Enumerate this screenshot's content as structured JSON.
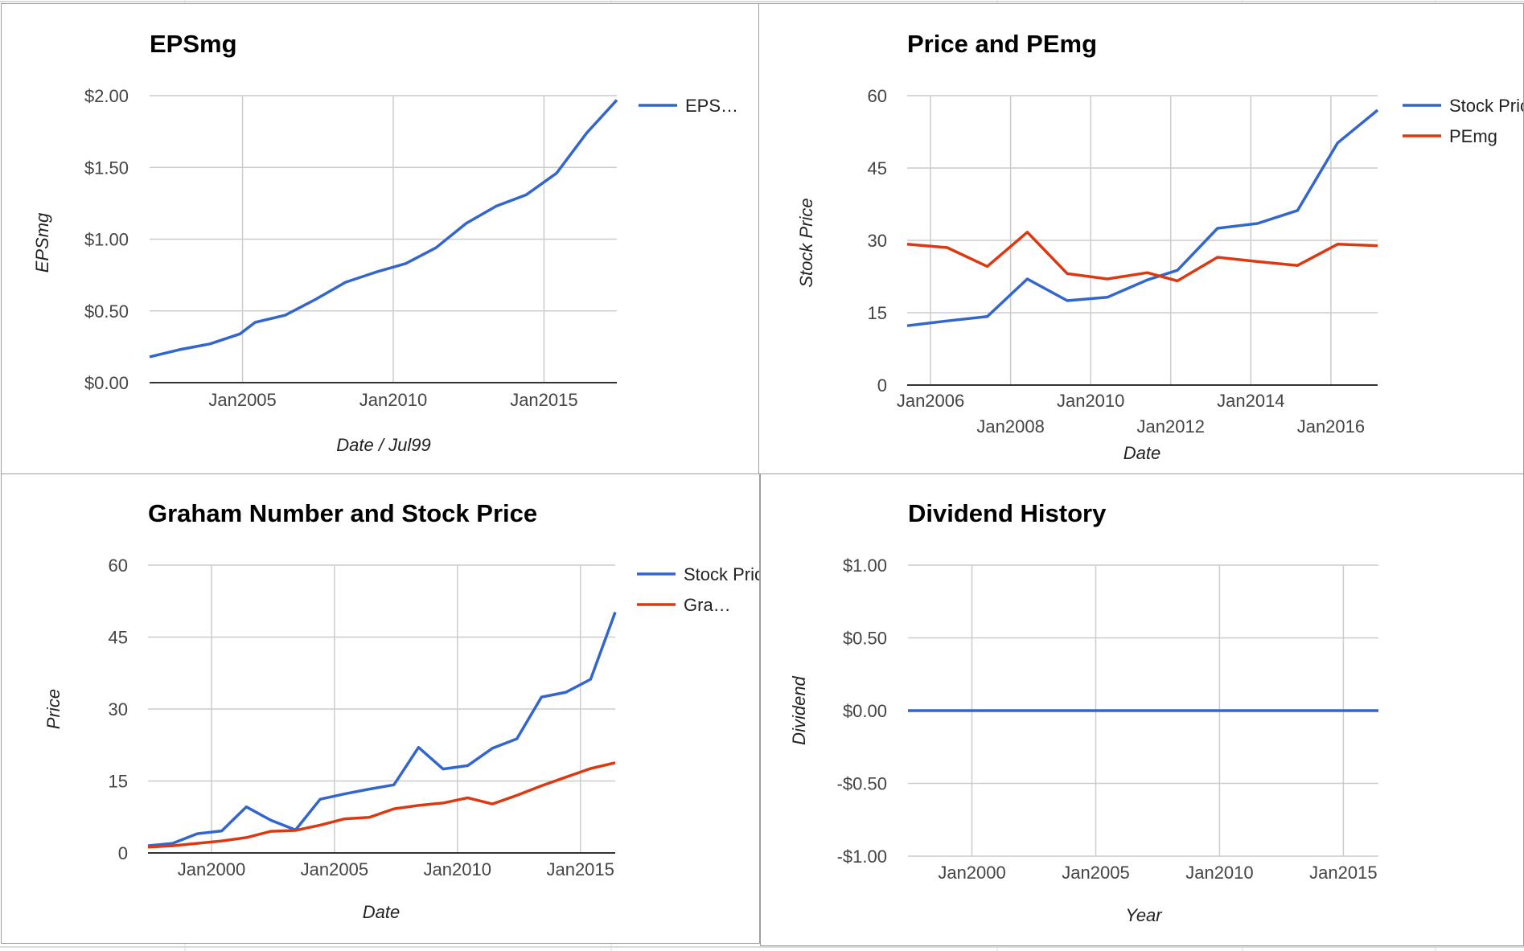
{
  "colors": {
    "blue": "#3366cc",
    "red": "#dc3912",
    "grid": "#cccccc"
  },
  "chart_data": [
    {
      "id": "eps",
      "type": "line",
      "title": "EPSmg",
      "xlabel": "Date / Jul99",
      "ylabel": "EPSmg",
      "x_range": [
        "2001-12",
        "2017-06"
      ],
      "ylim": [
        0,
        2
      ],
      "y_ticks": [
        0,
        0.5,
        1,
        1.5,
        2
      ],
      "y_tick_labels": [
        "$0.00",
        "$0.50",
        "$1.00",
        "$1.50",
        "$2.00"
      ],
      "x_ticks": [
        "2005-01",
        "2010-01",
        "2015-01"
      ],
      "x_tick_labels": [
        "Jan2005",
        "Jan2010",
        "Jan2015"
      ],
      "legend": "right",
      "grid": true,
      "series": [
        {
          "name": "EPS…",
          "color": "#3366cc",
          "x": [
            "2001-12",
            "2002-12",
            "2003-12",
            "2004-12",
            "2005-06",
            "2006-06",
            "2007-06",
            "2008-06",
            "2009-06",
            "2010-06",
            "2011-06",
            "2012-06",
            "2013-06",
            "2014-06",
            "2015-06",
            "2016-06",
            "2017-06"
          ],
          "values": [
            0.18,
            0.23,
            0.27,
            0.34,
            0.42,
            0.47,
            0.58,
            0.7,
            0.77,
            0.83,
            0.94,
            1.11,
            1.23,
            1.31,
            1.46,
            1.74,
            1.97
          ]
        }
      ]
    },
    {
      "id": "pe",
      "type": "line",
      "title": "Price and PEmg",
      "xlabel": "Date",
      "ylabel": "Stock Price",
      "x_range": [
        "2005-06",
        "2017-03"
      ],
      "ylim": [
        0,
        60
      ],
      "y_ticks": [
        0,
        15,
        30,
        45,
        60
      ],
      "y_tick_labels": [
        "0",
        "15",
        "30",
        "45",
        "60"
      ],
      "x_ticks": [
        "2006-01",
        "2008-01",
        "2010-01",
        "2012-01",
        "2014-01",
        "2016-01"
      ],
      "x_tick_labels": [
        "Jan2006",
        "Jan2008",
        "Jan2010",
        "Jan2012",
        "Jan2014",
        "Jan2016"
      ],
      "legend": "right",
      "grid": true,
      "series": [
        {
          "name": "Stock Price",
          "color": "#3366cc",
          "x": [
            "2005-06",
            "2006-06",
            "2007-06",
            "2008-06",
            "2009-06",
            "2010-06",
            "2011-06",
            "2012-03",
            "2013-03",
            "2014-03",
            "2015-03",
            "2016-03",
            "2017-03"
          ],
          "values": [
            12.3,
            13.3,
            14.2,
            22.0,
            17.5,
            18.2,
            21.8,
            23.8,
            32.5,
            33.5,
            36.2,
            50.2,
            57.0
          ]
        },
        {
          "name": "PEmg",
          "color": "#dc3912",
          "x": [
            "2005-06",
            "2006-06",
            "2007-06",
            "2008-06",
            "2009-06",
            "2010-06",
            "2011-06",
            "2012-03",
            "2013-03",
            "2014-03",
            "2015-03",
            "2016-03",
            "2017-03"
          ],
          "values": [
            29.2,
            28.5,
            24.6,
            31.7,
            23.1,
            22.0,
            23.3,
            21.6,
            26.5,
            25.6,
            24.8,
            29.2,
            28.9
          ]
        }
      ]
    },
    {
      "id": "graham",
      "type": "line",
      "title": "Graham Number and Stock Price",
      "xlabel": "Date",
      "ylabel": "Price",
      "x_range": [
        "1997-06",
        "2016-06"
      ],
      "ylim": [
        0,
        60
      ],
      "y_ticks": [
        0,
        15,
        30,
        45,
        60
      ],
      "y_tick_labels": [
        "0",
        "15",
        "30",
        "45",
        "60"
      ],
      "x_ticks": [
        "2000-01",
        "2005-01",
        "2010-01",
        "2015-01"
      ],
      "x_tick_labels": [
        "Jan2000",
        "Jan2005",
        "Jan2010",
        "Jan2015"
      ],
      "legend": "right",
      "grid": true,
      "series": [
        {
          "name": "Stock Price",
          "color": "#3366cc",
          "x": [
            "1997-06",
            "1998-06",
            "1999-06",
            "2000-06",
            "2001-06",
            "2002-06",
            "2003-06",
            "2004-06",
            "2005-06",
            "2006-06",
            "2007-06",
            "2008-06",
            "2009-06",
            "2010-06",
            "2011-06",
            "2012-06",
            "2013-06",
            "2014-06",
            "2015-06",
            "2016-06"
          ],
          "values": [
            1.5,
            2.0,
            4.0,
            4.6,
            9.6,
            6.8,
            4.8,
            11.2,
            12.3,
            13.3,
            14.2,
            22.0,
            17.5,
            18.2,
            21.8,
            23.8,
            32.5,
            33.5,
            36.2,
            50.2
          ]
        },
        {
          "name": "Gra…",
          "color": "#dc3912",
          "x": [
            "1997-06",
            "1998-06",
            "1999-06",
            "2000-06",
            "2001-06",
            "2002-06",
            "2003-06",
            "2004-06",
            "2005-06",
            "2006-06",
            "2007-06",
            "2008-06",
            "2009-06",
            "2010-06",
            "2011-06",
            "2012-06",
            "2013-06",
            "2014-06",
            "2015-06",
            "2016-06"
          ],
          "values": [
            1.2,
            1.5,
            2.0,
            2.5,
            3.2,
            4.5,
            4.7,
            5.8,
            7.1,
            7.4,
            9.2,
            9.9,
            10.4,
            11.5,
            10.2,
            12.0,
            14.0,
            15.8,
            17.6,
            18.8
          ]
        }
      ]
    },
    {
      "id": "div",
      "type": "line",
      "title": "Dividend History",
      "xlabel": "Year",
      "ylabel": "Dividend",
      "x_range": [
        "1997-06",
        "2016-06"
      ],
      "ylim": [
        -1,
        1
      ],
      "y_ticks": [
        -1,
        -0.5,
        0,
        0.5,
        1
      ],
      "y_tick_labels": [
        "-$1.00",
        "-$0.50",
        "$0.00",
        "$0.50",
        "$1.00"
      ],
      "x_ticks": [
        "2000-01",
        "2005-01",
        "2010-01",
        "2015-01"
      ],
      "x_tick_labels": [
        "Jan2000",
        "Jan2005",
        "Jan2010",
        "Jan2015"
      ],
      "legend": "none",
      "grid": true,
      "series": [
        {
          "name": "",
          "color": "#3366cc",
          "x": [
            "1997-06",
            "2016-06"
          ],
          "values": [
            0,
            0
          ]
        }
      ]
    }
  ]
}
